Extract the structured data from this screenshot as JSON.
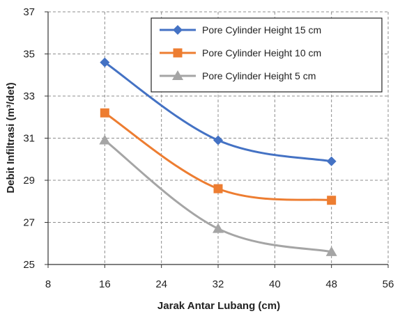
{
  "chart_data": {
    "type": "line",
    "xlabel": "Jarak Antar Lubang (cm)",
    "ylabel": "Debit Infiltrasi (m³/det)",
    "xlim": [
      8,
      56
    ],
    "ylim": [
      25,
      37
    ],
    "x_ticks": [
      "8",
      "16",
      "24",
      "32",
      "40",
      "48",
      "56"
    ],
    "y_ticks": [
      "25",
      "27",
      "29",
      "31",
      "33",
      "35",
      "37"
    ],
    "grid": true,
    "legend_position": "top-right",
    "x": [
      16,
      32,
      48
    ],
    "series": [
      {
        "name": "Pore Cylinder Height 15 cm",
        "values": [
          34.6,
          30.9,
          29.9
        ],
        "color": "#4472c4",
        "marker": "diamond"
      },
      {
        "name": "Pore Cylinder Height 10 cm",
        "values": [
          32.2,
          28.6,
          28.05
        ],
        "color": "#ed7d31",
        "marker": "square"
      },
      {
        "name": "Pore Cylinder Height 5 cm",
        "values": [
          30.9,
          26.7,
          25.6
        ],
        "color": "#a5a5a5",
        "marker": "triangle"
      }
    ]
  }
}
